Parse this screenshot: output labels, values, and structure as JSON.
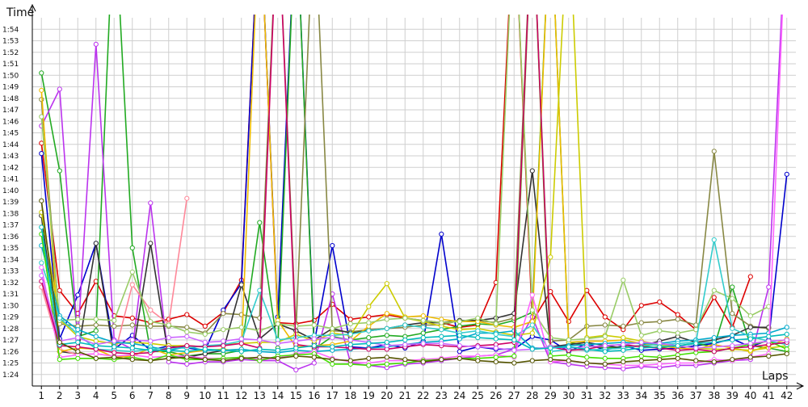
{
  "chart_data": {
    "type": "line",
    "title": "",
    "ylabel": "Time",
    "xlabel": "Laps",
    "x": [
      1,
      2,
      3,
      4,
      5,
      6,
      7,
      8,
      9,
      10,
      11,
      12,
      13,
      14,
      15,
      16,
      17,
      18,
      19,
      20,
      21,
      22,
      23,
      24,
      25,
      26,
      27,
      28,
      29,
      30,
      31,
      32,
      33,
      34,
      35,
      36,
      37,
      38,
      39,
      40,
      41,
      42
    ],
    "xlim": [
      0.5,
      42.5
    ],
    "ylim": [
      83,
      115
    ],
    "grid": true,
    "legend": "none",
    "y_ticks": [
      {
        "v": 84,
        "label": "1:24"
      },
      {
        "v": 85,
        "label": "1:25"
      },
      {
        "v": 86,
        "label": "1:26"
      },
      {
        "v": 87,
        "label": "1:27"
      },
      {
        "v": 88,
        "label": "1:28"
      },
      {
        "v": 89,
        "label": "1:29"
      },
      {
        "v": 90,
        "label": "1:30"
      },
      {
        "v": 91,
        "label": "1:31"
      },
      {
        "v": 92,
        "label": "1:32"
      },
      {
        "v": 93,
        "label": "1:33"
      },
      {
        "v": 94,
        "label": "1:34"
      },
      {
        "v": 95,
        "label": "1:35"
      },
      {
        "v": 96,
        "label": "1:36"
      },
      {
        "v": 97,
        "label": "1:37"
      },
      {
        "v": 98,
        "label": "1:38"
      },
      {
        "v": 99,
        "label": "1:39"
      },
      {
        "v": 100,
        "label": "1:40"
      },
      {
        "v": 101,
        "label": "1:41"
      },
      {
        "v": 102,
        "label": "1:42"
      },
      {
        "v": 103,
        "label": "1:43"
      },
      {
        "v": 104,
        "label": "1:44"
      },
      {
        "v": 105,
        "label": "1:45"
      },
      {
        "v": 106,
        "label": "1:46"
      },
      {
        "v": 107,
        "label": "1:47"
      },
      {
        "v": 108,
        "label": "1:48"
      },
      {
        "v": 109,
        "label": "1:49"
      },
      {
        "v": 110,
        "label": "1:50"
      },
      {
        "v": 111,
        "label": "1:51"
      },
      {
        "v": 112,
        "label": "1:52"
      },
      {
        "v": 113,
        "label": "1:53"
      },
      {
        "v": 114,
        "label": "1:54"
      }
    ],
    "series": [
      {
        "color": "#dd0000",
        "values": [
          104.1,
          91.3,
          89.3,
          92.1,
          89.1,
          88.9,
          88.5,
          88.8,
          89.2,
          88.2,
          89.4,
          92.2,
          125,
          88.5,
          88.4,
          88.7,
          90.1,
          88.8,
          89.0,
          89.2,
          88.9,
          88.7,
          88.5,
          88.1,
          88.3,
          92.0,
          125,
          88.6,
          91.2,
          88.6,
          91.3,
          89.0,
          87.9,
          90.0,
          90.3,
          89.2,
          87.9,
          90.7,
          88.1,
          92.5,
          null,
          null
        ]
      },
      {
        "color": "#0000cc",
        "values": [
          103.2,
          87.1,
          90.9,
          95.4,
          86.2,
          87.4,
          86.1,
          86.5,
          86.3,
          86.1,
          89.6,
          91.9,
          125,
          89.0,
          125,
          86.7,
          95.2,
          86.4,
          86.3,
          86.6,
          86.3,
          86.9,
          96.2,
          86.0,
          86.4,
          86.2,
          86.2,
          87.3,
          87.0,
          86.0,
          86.7,
          86.1,
          86.5,
          86.1,
          86.2,
          86.3,
          86.5,
          86.7,
          87.1,
          86.4,
          87.0,
          101.4
        ]
      },
      {
        "color": "#22aa22",
        "values": [
          110.2,
          101.7,
          87.3,
          87.8,
          125,
          95.0,
          86.0,
          86.0,
          85.6,
          85.8,
          85.8,
          86.1,
          97.2,
          86.3,
          125,
          86.2,
          87.3,
          87.0,
          87.2,
          87.4,
          87.3,
          87.6,
          87.9,
          88.2,
          88.4,
          88.3,
          88.7,
          89.4,
          125,
          86.8,
          86.5,
          86.3,
          86.4,
          86.5,
          86.3,
          86.5,
          86.7,
          86.4,
          91.6,
          86.5,
          86.3,
          86.0
        ]
      },
      {
        "color": "#bb33ee",
        "values": [
          105.6,
          108.8,
          87.0,
          112.7,
          87.0,
          86.2,
          98.9,
          85.1,
          84.9,
          85.1,
          85.1,
          85.3,
          85.2,
          85.2,
          84.4,
          85.0,
          91.0,
          85.0,
          84.8,
          84.6,
          84.9,
          85.0,
          85.2,
          85.4,
          85.6,
          85.7,
          86.2,
          89.0,
          85.1,
          84.9,
          84.7,
          84.6,
          84.5,
          84.7,
          84.6,
          84.8,
          84.8,
          85.0,
          85.2,
          85.3,
          91.6,
          125
        ]
      },
      {
        "color": "#888844",
        "values": [
          107.9,
          88.4,
          88.2,
          88.3,
          88.2,
          88.3,
          88.2,
          88.2,
          88.1,
          87.6,
          89.3,
          89.2,
          88.9,
          125,
          87.8,
          125,
          87.8,
          87.7,
          87.9,
          88.0,
          88.1,
          88.3,
          88.3,
          88.7,
          88.7,
          88.5,
          88.9,
          125,
          86.9,
          87.0,
          88.2,
          88.3,
          88.2,
          88.5,
          88.6,
          88.8,
          88.3,
          103.4,
          89.3,
          88.2,
          88.0,
          null
        ]
      },
      {
        "color": "#333333",
        "values": [
          97.8,
          86.0,
          85.8,
          95.4,
          85.5,
          85.6,
          95.4,
          85.5,
          85.5,
          85.8,
          86.1,
          91.8,
          87.1,
          88.4,
          87.8,
          87.0,
          88.0,
          87.6,
          87.8,
          88.0,
          88.3,
          88.5,
          88.5,
          88.7,
          88.7,
          88.9,
          89.3,
          101.7,
          86.4,
          86.6,
          86.8,
          86.5,
          86.3,
          86.5,
          86.9,
          87.3,
          86.8,
          87.0,
          87.4,
          88.1,
          88.1,
          null
        ]
      },
      {
        "color": "#ff8899",
        "values": [
          91.6,
          86.2,
          85.7,
          85.8,
          85.6,
          91.8,
          89.6,
          88.4,
          99.3,
          null,
          null,
          null,
          null,
          null,
          null,
          null,
          null,
          null,
          null,
          null,
          null,
          null,
          null,
          null,
          null,
          null,
          null,
          null,
          null,
          null,
          null,
          null,
          null,
          null,
          null,
          null,
          null,
          null,
          null,
          null,
          null,
          null
        ]
      },
      {
        "color": "#eebb00",
        "values": [
          108.7,
          86.0,
          86.3,
          86.2,
          85.5,
          85.6,
          86.3,
          85.7,
          85.9,
          86.1,
          86.2,
          86.0,
          125,
          88.7,
          86.4,
          86.5,
          86.6,
          86.9,
          88.2,
          89.3,
          89.0,
          89.1,
          88.8,
          88.6,
          88.6,
          88.3,
          88.1,
          88.6,
          125,
          86.8,
          86.9,
          86.9,
          87.0,
          86.7,
          86.5,
          86.3,
          86.2,
          86.6,
          86.3,
          86.0,
          86.5,
          87.1
        ]
      },
      {
        "color": "#cccc00",
        "values": [
          98.1,
          88.8,
          87.3,
          86.9,
          86.7,
          86.8,
          86.7,
          86.5,
          86.5,
          86.4,
          86.6,
          86.7,
          86.8,
          86.8,
          87.5,
          86.9,
          87.6,
          87.4,
          89.9,
          91.9,
          88.9,
          88.6,
          88.2,
          87.9,
          88.0,
          87.7,
          87.4,
          87.6,
          94.2,
          125,
          87.2,
          87.4,
          87.2,
          86.9,
          86.6,
          86.5,
          86.3,
          86.2,
          86.2,
          86.1,
          86.3,
          86.5
        ]
      },
      {
        "color": "#99cc66",
        "values": [
          106.4,
          88.7,
          88.8,
          88.8,
          88.7,
          92.9,
          88.6,
          88.3,
          87.7,
          87.5,
          87.9,
          88.1,
          87.8,
          88.4,
          88.2,
          88.3,
          88.0,
          88.4,
          88.5,
          88.8,
          88.9,
          88.7,
          88.5,
          88.6,
          88.9,
          88.4,
          125,
          89.6,
          87.2,
          87.0,
          87.1,
          87.3,
          92.2,
          87.4,
          87.8,
          87.6,
          87.9,
          91.3,
          90.6,
          89.1,
          89.9,
          null
        ]
      },
      {
        "color": "#00aacc",
        "values": [
          95.2,
          89.1,
          87.9,
          87.3,
          86.8,
          86.7,
          86.4,
          86.1,
          86.4,
          86.1,
          86.1,
          86.2,
          86.0,
          85.9,
          86.1,
          86.0,
          86.1,
          86.2,
          86.3,
          86.4,
          86.6,
          86.8,
          86.9,
          87.1,
          87.6,
          87.6,
          87.8,
          86.3,
          86.3,
          86.5,
          86.6,
          86.7,
          86.8,
          86.7,
          86.7,
          86.9,
          87.0,
          87.2,
          87.4,
          87.5,
          87.6,
          88.1
        ]
      },
      {
        "color": "#33cccc",
        "values": [
          93.7,
          88.9,
          87.5,
          86.2,
          86.1,
          86.0,
          86.2,
          86.3,
          86.3,
          86.5,
          86.6,
          86.9,
          91.3,
          87.0,
          87.2,
          87.4,
          87.4,
          87.5,
          87.8,
          88.0,
          88.3,
          88.1,
          87.9,
          87.6,
          87.8,
          87.5,
          87.3,
          88.3,
          86.0,
          86.2,
          86.1,
          86.2,
          86.3,
          86.5,
          86.6,
          86.7,
          86.8,
          95.7,
          88.0,
          87.3,
          86.9,
          86.6
        ]
      },
      {
        "color": "#ff66ff",
        "values": [
          93.3,
          85.5,
          85.7,
          85.8,
          85.6,
          85.7,
          85.5,
          85.6,
          85.6,
          85.4,
          85.4,
          85.5,
          85.3,
          85.4,
          85.8,
          86.0,
          85.4,
          85.1,
          85.0,
          85.2,
          85.2,
          85.3,
          85.4,
          85.6,
          85.6,
          85.7,
          85.5,
          90.9,
          85.1,
          85.2,
          85.0,
          84.9,
          84.8,
          84.8,
          84.9,
          85.0,
          85.0,
          85.3,
          85.2,
          85.5,
          85.8,
          125
        ]
      },
      {
        "color": "#44dd00",
        "values": [
          96.2,
          85.3,
          85.4,
          85.4,
          85.3,
          85.5,
          85.2,
          85.7,
          85.3,
          85.3,
          85.4,
          85.5,
          85.2,
          85.6,
          85.7,
          85.8,
          84.9,
          84.9,
          84.8,
          84.9,
          85.0,
          85.2,
          85.3,
          85.4,
          85.4,
          85.5,
          85.6,
          125,
          85.6,
          85.7,
          85.5,
          85.4,
          85.4,
          85.6,
          85.5,
          85.7,
          85.9,
          86.0,
          86.3,
          86.6,
          86.9,
          86.2
        ]
      },
      {
        "color": "#cc0066",
        "values": [
          92.1,
          86.5,
          86.4,
          86.2,
          85.9,
          85.8,
          85.9,
          86.3,
          86.5,
          86.4,
          86.5,
          86.7,
          86.3,
          125,
          86.6,
          86.4,
          86.4,
          86.3,
          86.2,
          86.2,
          86.4,
          86.6,
          86.5,
          86.4,
          86.5,
          86.6,
          86.8,
          125,
          86.4,
          86.1,
          86.2,
          86.5,
          86.6,
          86.4,
          86.3,
          86.1,
          86.2,
          86.0,
          86.3,
          86.4,
          86.6,
          86.8
        ]
      },
      {
        "color": "#cc66ff",
        "values": [
          92.6,
          86.9,
          87.2,
          86.6,
          86.9,
          87.0,
          86.9,
          87.2,
          87.3,
          86.8,
          86.9,
          87.1,
          87.0,
          86.7,
          86.9,
          87.1,
          87.2,
          87.0,
          86.8,
          86.5,
          86.6,
          86.7,
          86.7,
          86.5,
          86.4,
          86.3,
          86.1,
          86.2,
          86.4,
          86.3,
          86.4,
          86.5,
          86.6,
          86.8,
          86.7,
          86.5,
          86.3,
          86.4,
          86.5,
          86.7,
          86.9,
          87.0
        ]
      },
      {
        "color": "#00bbbb",
        "values": [
          96.8,
          86.6,
          86.8,
          86.5,
          86.4,
          86.3,
          86.1,
          86.1,
          86.0,
          86.2,
          86.1,
          86.0,
          86.2,
          86.1,
          86.3,
          86.5,
          86.4,
          86.6,
          86.7,
          86.8,
          87.0,
          87.2,
          87.3,
          87.4,
          87.2,
          87.1,
          87.0,
          86.2,
          86.3,
          86.4,
          86.2,
          86.0,
          86.1,
          86.3,
          86.4,
          86.5,
          86.7,
          86.8,
          87.0,
          87.1,
          87.3,
          87.5
        ]
      },
      {
        "color": "#555500",
        "values": [
          99.1,
          86.8,
          86.0,
          85.4,
          85.5,
          85.3,
          85.2,
          85.4,
          85.5,
          85.3,
          85.2,
          85.4,
          85.5,
          85.4,
          85.6,
          85.5,
          85.3,
          85.2,
          85.4,
          85.5,
          85.3,
          85.1,
          85.3,
          85.4,
          85.2,
          85.1,
          85.0,
          85.2,
          85.3,
          85.2,
          85.0,
          84.9,
          85.1,
          85.2,
          85.3,
          85.4,
          85.2,
          85.1,
          85.3,
          85.5,
          85.6,
          85.8
        ]
      }
    ]
  }
}
